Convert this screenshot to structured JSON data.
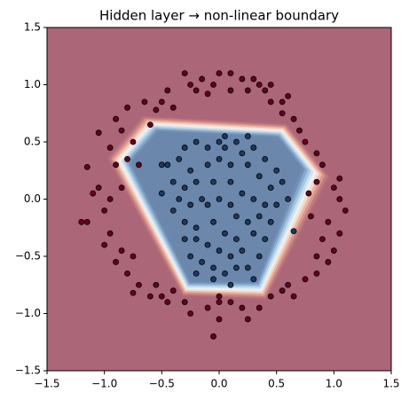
{
  "chart_data": {
    "type": "scatter",
    "title": "Hidden layer → non-linear boundary",
    "xlim": [
      -1.5,
      1.5
    ],
    "ylim": [
      -1.5,
      1.5
    ],
    "xticks": [
      {
        "value": -1.5,
        "label": "−1.5"
      },
      {
        "value": -1.0,
        "label": "−1.0"
      },
      {
        "value": -0.5,
        "label": "−0.5"
      },
      {
        "value": 0,
        "label": "0.0"
      },
      {
        "value": 0.5,
        "label": "0.5"
      },
      {
        "value": 1.0,
        "label": "1.0"
      },
      {
        "value": 1.5,
        "label": "1.5"
      }
    ],
    "yticks": [
      {
        "value": -1.5,
        "label": "−1.5"
      },
      {
        "value": -1.0,
        "label": "−1.0"
      },
      {
        "value": -0.5,
        "label": "−0.5"
      },
      {
        "value": 0,
        "label": "0.0"
      },
      {
        "value": 0.5,
        "label": "0.5"
      },
      {
        "value": 1.0,
        "label": "1.0"
      },
      {
        "value": 1.5,
        "label": "1.5"
      }
    ],
    "background_color": "#ab6677",
    "boundary": {
      "outer": [
        [
          -0.67,
          0.73
        ],
        [
          0.59,
          0.66
        ],
        [
          0.97,
          0.19
        ],
        [
          0.41,
          -0.88
        ],
        [
          -0.32,
          -0.85
        ],
        [
          -0.98,
          0.36
        ]
      ],
      "inner": [
        [
          -0.53,
          0.59
        ],
        [
          0.51,
          0.54
        ],
        [
          0.72,
          0.27
        ],
        [
          0.33,
          -0.72
        ],
        [
          -0.25,
          -0.72
        ],
        [
          -0.77,
          0.32
        ]
      ],
      "colors": [
        "#b06a78",
        "#c27a80",
        "#d8958c",
        "#ebb8a4",
        "#f3ddd2",
        "#eef0f2",
        "#cfe1ee",
        "#a8c8e0",
        "#86a9cc",
        "#7190b6",
        "#6b87ac"
      ]
    },
    "series": [
      {
        "color": "#67001f",
        "x": [
          -0.3,
          -0.25,
          -0.2,
          -0.15,
          -0.05,
          0.0,
          0.1,
          0.1,
          0.2,
          0.3,
          0.35,
          0.4,
          0.45,
          0.55,
          0.6,
          0.45,
          0.25,
          -0.1,
          -0.45,
          -0.5,
          -0.65,
          -0.4,
          -0.55,
          -0.8,
          -0.9,
          -0.85,
          -1.05,
          -0.95,
          -0.75,
          -0.8,
          -0.9,
          -1.15,
          -1.05,
          -1.1,
          -0.95,
          -0.85,
          -1.0,
          -1.15,
          -1.2,
          -0.95,
          -1.0,
          -0.85,
          -0.9,
          -0.75,
          -0.8,
          -0.7,
          -0.75,
          -0.6,
          -0.55,
          -0.5,
          -0.45,
          -0.4,
          -0.3,
          -0.25,
          -0.1,
          0.0,
          0.0,
          -0.05,
          0.1,
          0.2,
          0.25,
          0.35,
          0.45,
          0.55,
          0.6,
          0.65,
          0.75,
          0.85,
          0.85,
          0.95,
          1.0,
          0.9,
          1.05,
          0.95,
          1.1,
          1.05,
          1.0,
          0.85,
          0.9,
          0.85,
          0.75,
          0.7,
          0.65,
          0.55,
          1.05,
          0.8,
          0.78,
          -0.7,
          -0.6,
          0.0
        ],
        "y": [
          1.1,
          1.0,
          0.95,
          1.05,
          1.0,
          1.1,
          1.1,
          0.95,
          1.05,
          1.05,
          1.0,
          0.95,
          1.0,
          0.85,
          0.9,
          0.85,
          0.95,
          0.92,
          0.95,
          0.85,
          0.85,
          0.8,
          0.78,
          0.8,
          0.7,
          0.6,
          0.58,
          0.45,
          0.5,
          0.35,
          0.3,
          0.28,
          0.1,
          0.05,
          0.0,
          0.1,
          -0.1,
          -0.2,
          -0.2,
          -0.3,
          -0.4,
          -0.45,
          -0.55,
          -0.5,
          -0.65,
          -0.75,
          -0.82,
          -0.85,
          -0.75,
          -0.85,
          -0.9,
          -0.8,
          -0.9,
          -1.0,
          -0.95,
          -0.9,
          -1.05,
          -1.2,
          -0.9,
          -0.95,
          -1.05,
          -0.95,
          -0.85,
          -0.8,
          -0.75,
          -0.85,
          -0.7,
          -0.65,
          -0.5,
          -0.55,
          -0.45,
          -0.35,
          -0.3,
          -0.2,
          -0.1,
          0.0,
          0.1,
          0.15,
          0.3,
          0.4,
          0.5,
          0.6,
          0.7,
          0.75,
          0.18,
          -0.15,
          0.05,
          0.3,
          0.65,
          -0.85
        ]
      },
      {
        "color": "#1f3a60",
        "x": [
          -0.45,
          -0.35,
          -0.3,
          -0.2,
          -0.1,
          0.0,
          0.05,
          0.15,
          0.2,
          0.3,
          0.4,
          0.5,
          0.55,
          0.45,
          0.35,
          0.25,
          0.1,
          0.0,
          -0.1,
          -0.25,
          -0.4,
          -0.5,
          -0.3,
          -0.2,
          -0.05,
          0.1,
          0.2,
          0.3,
          0.4,
          0.5,
          0.45,
          0.35,
          0.25,
          0.1,
          0.0,
          -0.1,
          -0.25,
          -0.35,
          -0.3,
          -0.2,
          -0.05,
          0.05,
          0.15,
          0.3,
          0.4,
          0.35,
          0.2,
          0.1,
          0.0,
          -0.1,
          -0.2,
          -0.25,
          -0.15,
          -0.05,
          0.05,
          0.15,
          0.25,
          0.3,
          0.1,
          -0.05,
          -0.2,
          -0.3,
          -0.4,
          0.6,
          0.65,
          -0.15,
          0.05,
          0.25,
          -0.5,
          0.15
        ],
        "y": [
          0.3,
          0.35,
          0.45,
          0.5,
          0.45,
          0.5,
          0.55,
          0.5,
          0.4,
          0.45,
          0.35,
          0.25,
          0.15,
          0.1,
          0.2,
          0.3,
          0.3,
          0.35,
          0.3,
          0.25,
          0.15,
          0.3,
          0.1,
          0.15,
          0.15,
          0.15,
          0.05,
          0.0,
          -0.05,
          -0.05,
          -0.2,
          -0.15,
          -0.2,
          -0.05,
          0.0,
          -0.05,
          -0.05,
          0.0,
          -0.2,
          -0.25,
          -0.2,
          -0.3,
          -0.35,
          -0.3,
          -0.35,
          -0.5,
          -0.45,
          -0.5,
          -0.45,
          -0.4,
          -0.35,
          -0.5,
          -0.55,
          -0.6,
          -0.65,
          -0.6,
          -0.6,
          -0.7,
          -0.75,
          -0.7,
          -0.65,
          -0.35,
          -0.1,
          0.0,
          -0.28,
          0.0,
          0.45,
          0.55,
          0.05,
          -0.15
        ]
      }
    ]
  }
}
